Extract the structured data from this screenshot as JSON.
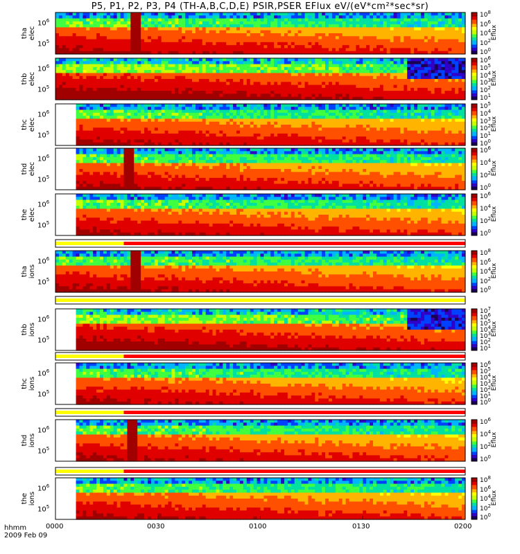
{
  "chart_data": {
    "type": "heatmap",
    "title": "P5, P1, P2, P3, P4 (TH-A,B,C,D,E) PSIR,PSER EFlux eV/(eV*cm²*sec*sr)",
    "x_axis": {
      "ticks": [
        "0000",
        "0030",
        "0100",
        "0130",
        "0200"
      ],
      "label_line1": "hhmm",
      "label_line2": "2009 Feb 09"
    },
    "panels": [
      {
        "name": "tha elec",
        "line1": "tha",
        "line2": "elec",
        "yticks": [
          {
            "base": "10",
            "exp": "6"
          },
          {
            "base": "10",
            "exp": "5"
          }
        ],
        "colorbar": [
          {
            "base": "10",
            "exp": "8"
          },
          {
            "base": "10",
            "exp": "6"
          },
          {
            "base": "10",
            "exp": "4"
          },
          {
            "base": "10",
            "exp": "2"
          },
          {
            "base": "10",
            "exp": "0"
          }
        ],
        "colorbar_title": "Eflux"
      },
      {
        "name": "thb elec",
        "line1": "thb",
        "line2": "elec",
        "yticks": [
          {
            "base": "10",
            "exp": "6"
          },
          {
            "base": "10",
            "exp": "5"
          }
        ],
        "colorbar": [
          {
            "base": "10",
            "exp": "6"
          },
          {
            "base": "10",
            "exp": "5"
          },
          {
            "base": "10",
            "exp": "4"
          },
          {
            "base": "10",
            "exp": "3"
          },
          {
            "base": "10",
            "exp": "2"
          },
          {
            "base": "10",
            "exp": "1"
          }
        ],
        "colorbar_title": "Eflux"
      },
      {
        "name": "thc elec",
        "line1": "thc",
        "line2": "elec",
        "yticks": [
          {
            "base": "10",
            "exp": "6"
          },
          {
            "base": "10",
            "exp": "5"
          }
        ],
        "colorbar": [
          {
            "base": "10",
            "exp": "5"
          },
          {
            "base": "10",
            "exp": "4"
          },
          {
            "base": "10",
            "exp": "3"
          },
          {
            "base": "10",
            "exp": "2"
          },
          {
            "base": "10",
            "exp": "1"
          },
          {
            "base": "10",
            "exp": "0"
          }
        ],
        "colorbar_title": "Eflux"
      },
      {
        "name": "thd elec",
        "line1": "thd",
        "line2": "elec",
        "yticks": [
          {
            "base": "10",
            "exp": "6"
          },
          {
            "base": "10",
            "exp": "5"
          }
        ],
        "colorbar": [
          {
            "base": "10",
            "exp": "6"
          },
          {
            "base": "10",
            "exp": "4"
          },
          {
            "base": "10",
            "exp": "2"
          },
          {
            "base": "10",
            "exp": "0"
          }
        ],
        "colorbar_title": "Eflux"
      },
      {
        "name": "the elec",
        "line1": "the",
        "line2": "elec",
        "yticks": [
          {
            "base": "10",
            "exp": "6"
          },
          {
            "base": "10",
            "exp": "5"
          }
        ],
        "colorbar": [
          {
            "base": "10",
            "exp": "6"
          },
          {
            "base": "10",
            "exp": "4"
          },
          {
            "base": "10",
            "exp": "2"
          },
          {
            "base": "10",
            "exp": "0"
          }
        ],
        "colorbar_title": "Eflux"
      },
      {
        "name": "tha ions",
        "line1": "tha",
        "line2": "ions",
        "yticks": [
          {
            "base": "10",
            "exp": "6"
          },
          {
            "base": "10",
            "exp": "5"
          }
        ],
        "colorbar": [
          {
            "base": "10",
            "exp": "8"
          },
          {
            "base": "10",
            "exp": "6"
          },
          {
            "base": "10",
            "exp": "4"
          },
          {
            "base": "10",
            "exp": "2"
          },
          {
            "base": "10",
            "exp": "0"
          }
        ],
        "colorbar_title": "Eflux"
      },
      {
        "name": "thb ions",
        "line1": "thb",
        "line2": "ions",
        "yticks": [
          {
            "base": "10",
            "exp": "6"
          },
          {
            "base": "10",
            "exp": "5"
          }
        ],
        "colorbar": [
          {
            "base": "10",
            "exp": "7"
          },
          {
            "base": "10",
            "exp": "6"
          },
          {
            "base": "10",
            "exp": "5"
          },
          {
            "base": "10",
            "exp": "4"
          },
          {
            "base": "10",
            "exp": "3"
          },
          {
            "base": "10",
            "exp": "2"
          },
          {
            "base": "10",
            "exp": "1"
          }
        ],
        "colorbar_title": "Eflux"
      },
      {
        "name": "thc ions",
        "line1": "thc",
        "line2": "ions",
        "yticks": [
          {
            "base": "10",
            "exp": "6"
          },
          {
            "base": "10",
            "exp": "5"
          }
        ],
        "colorbar": [
          {
            "base": "10",
            "exp": "6"
          },
          {
            "base": "10",
            "exp": "5"
          },
          {
            "base": "10",
            "exp": "4"
          },
          {
            "base": "10",
            "exp": "3"
          },
          {
            "base": "10",
            "exp": "2"
          },
          {
            "base": "10",
            "exp": "1"
          },
          {
            "base": "10",
            "exp": "0"
          }
        ],
        "colorbar_title": "Eflux"
      },
      {
        "name": "thd ions",
        "line1": "thd",
        "line2": "ions",
        "yticks": [
          {
            "base": "10",
            "exp": "6"
          },
          {
            "base": "10",
            "exp": "5"
          }
        ],
        "colorbar": [
          {
            "base": "10",
            "exp": "6"
          },
          {
            "base": "10",
            "exp": "4"
          },
          {
            "base": "10",
            "exp": "2"
          },
          {
            "base": "10",
            "exp": "0"
          }
        ],
        "colorbar_title": "Eflux"
      },
      {
        "name": "the ions",
        "line1": "the",
        "line2": "ions",
        "yticks": [
          {
            "base": "10",
            "exp": "6"
          },
          {
            "base": "10",
            "exp": "5"
          }
        ],
        "colorbar": [
          {
            "base": "10",
            "exp": "8"
          },
          {
            "base": "10",
            "exp": "6"
          },
          {
            "base": "10",
            "exp": "4"
          },
          {
            "base": "10",
            "exp": "2"
          },
          {
            "base": "10",
            "exp": "0"
          }
        ],
        "colorbar_title": "Eflux"
      }
    ],
    "mode_bars": [
      {
        "after_panel": "the elec",
        "segments": [
          {
            "from": "0000",
            "to": "0020",
            "color": "#ffff00"
          },
          {
            "from": "0020",
            "to": "0200",
            "color": "#ff0000"
          }
        ]
      },
      {
        "after_panel": "tha ions",
        "segments": [
          {
            "from": "0000",
            "to": "0200",
            "color": "#ffff00"
          }
        ]
      },
      {
        "after_panel": "thb ions",
        "segments": [
          {
            "from": "0000",
            "to": "0020",
            "color": "#ffff00"
          },
          {
            "from": "0020",
            "to": "0200",
            "color": "#ff0000"
          }
        ]
      },
      {
        "after_panel": "thc ions",
        "segments": [
          {
            "from": "0000",
            "to": "0020",
            "color": "#ffff00"
          },
          {
            "from": "0020",
            "to": "0200",
            "color": "#ff0000"
          }
        ]
      },
      {
        "after_panel": "thd ions",
        "segments": [
          {
            "from": "0000",
            "to": "0020",
            "color": "#ffff00"
          },
          {
            "from": "0020",
            "to": "0200",
            "color": "#ff0000"
          }
        ]
      }
    ],
    "colormap": [
      "#1a0050",
      "#3000c8",
      "#0040ff",
      "#00b4ff",
      "#00e0a0",
      "#40ff40",
      "#c8ff00",
      "#ffff00",
      "#ffb400",
      "#ff5000",
      "#e00000",
      "#a00000"
    ]
  }
}
